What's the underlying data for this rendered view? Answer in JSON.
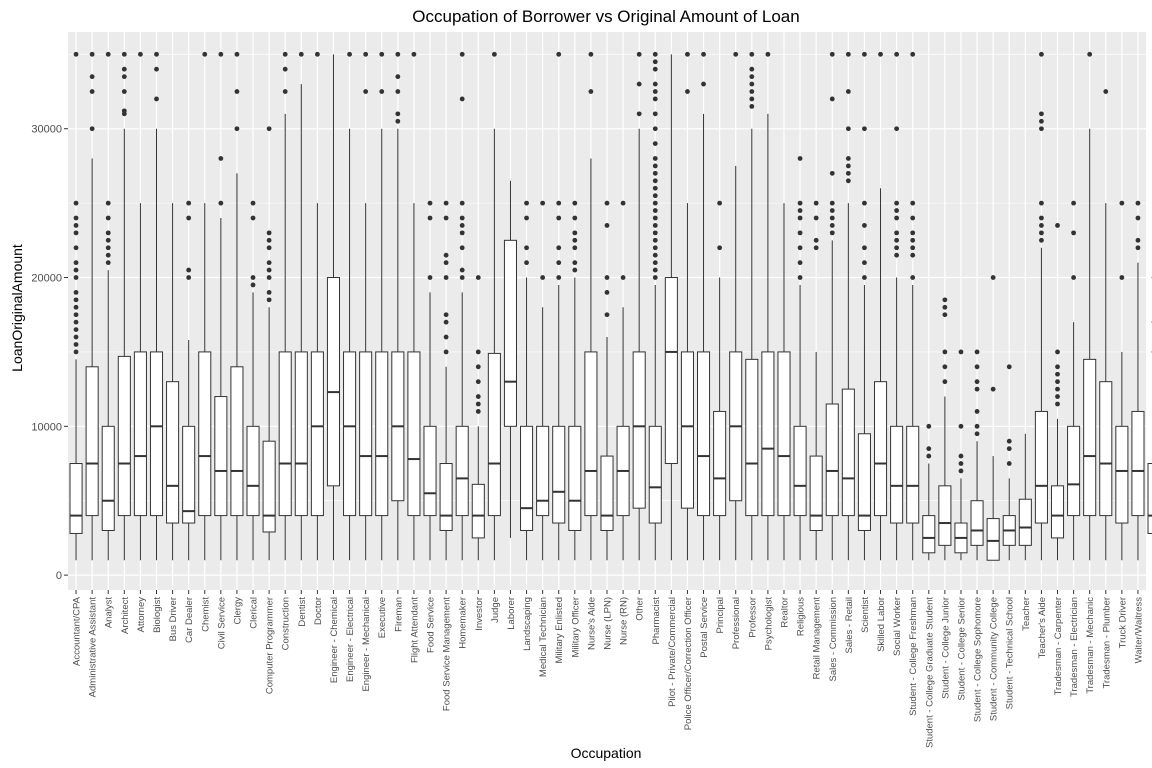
{
  "chart_data": {
    "type": "box",
    "title": "Occupation of Borrower vs Original Amount of Loan",
    "xlabel": "Occupation",
    "ylabel": "LoanOriginalAmount",
    "ylim": [
      -1000,
      36500
    ],
    "yticks": [
      0,
      10000,
      20000,
      30000
    ],
    "grid": true,
    "panel_color": "#ebebeb",
    "grid_color": "#ffffff",
    "box_stroke": "#333333",
    "box_fill": "#ffffff",
    "categories": [
      "Accountant/CPA",
      "Administrative Assistant",
      "Analyst",
      "Architect",
      "Attorney",
      "Biologist",
      "Bus Driver",
      "Car Dealer",
      "Chemist",
      "Civil Service",
      "Clergy",
      "Clerical",
      "Computer Programmer",
      "Construction",
      "Dentist",
      "Doctor",
      "Engineer - Chemical",
      "Engineer - Electrical",
      "Engineer - Mechanical",
      "Executive",
      "Fireman",
      "Flight Attendant",
      "Food Service",
      "Food Service Management",
      "Homemaker",
      "Investor",
      "Judge",
      "Laborer",
      "Landscaping",
      "Medical Technician",
      "Military Enlisted",
      "Military Officer",
      "Nurse's Aide",
      "Nurse (LPN)",
      "Nurse (RN)",
      "Other",
      "Pharmacist",
      "Pilot - Private/Commercial",
      "Police Officer/Correction Officer",
      "Postal Service",
      "Principal",
      "Professional",
      "Professor",
      "Psychologist",
      "Realtor",
      "Religious",
      "Retail Management",
      "Sales - Commission",
      "Sales - Retail",
      "Scientist",
      "Skilled Labor",
      "Social Worker",
      "Student - College Freshman",
      "Student - College Graduate Student",
      "Student - College Junior",
      "Student - College Senior",
      "Student - College Sophomore",
      "Student - Community College",
      "Student - Technical School",
      "Teacher",
      "Teacher's Aide",
      "Tradesman - Carpenter",
      "Tradesman - Electrician",
      "Tradesman - Mechanic",
      "Tradesman - Plumber",
      "Truck Driver",
      "Waiter/Waitress"
    ],
    "boxes": [
      {
        "min": 1000,
        "q1": 2800,
        "median": 4000,
        "q3": 7500,
        "max": 14500,
        "outliers": [
          15000,
          15500,
          16000,
          16500,
          17000,
          17500,
          18000,
          18500,
          19000,
          20000,
          20500,
          21000,
          22000,
          23000,
          23500,
          24000,
          25000,
          35000
        ]
      },
      {
        "min": 1000,
        "q1": 4000,
        "median": 7500,
        "q3": 14000,
        "max": 28000,
        "outliers": [
          30000,
          32500,
          33500,
          35000
        ]
      },
      {
        "min": 1000,
        "q1": 3000,
        "median": 5000,
        "q3": 10000,
        "max": 20500,
        "outliers": [
          21000,
          21500,
          22000,
          22500,
          23000,
          24000,
          25000,
          35000
        ]
      },
      {
        "min": 1000,
        "q1": 4000,
        "median": 7500,
        "q3": 14700,
        "max": 30000,
        "outliers": [
          31000,
          31200,
          32500,
          33500,
          34000,
          35000
        ]
      },
      {
        "min": 1000,
        "q1": 4000,
        "median": 8000,
        "q3": 15000,
        "max": 25000,
        "outliers": [
          35000
        ]
      },
      {
        "min": 1000,
        "q1": 4000,
        "median": 10000,
        "q3": 15000,
        "max": 30000,
        "outliers": [
          32000,
          34000,
          35000
        ]
      },
      {
        "min": 1000,
        "q1": 3500,
        "median": 6000,
        "q3": 13000,
        "max": 25000,
        "outliers": []
      },
      {
        "min": 1000,
        "q1": 3500,
        "median": 4300,
        "q3": 10000,
        "max": 15800,
        "outliers": [
          20000,
          20500,
          24000,
          25000
        ]
      },
      {
        "min": 1000,
        "q1": 4000,
        "median": 8000,
        "q3": 15000,
        "max": 25000,
        "outliers": [
          35000
        ]
      },
      {
        "min": 1000,
        "q1": 4000,
        "median": 7000,
        "q3": 12000,
        "max": 24000,
        "outliers": [
          25000,
          28000,
          35000
        ]
      },
      {
        "min": 1000,
        "q1": 4000,
        "median": 7000,
        "q3": 14000,
        "max": 27000,
        "outliers": [
          30000,
          32500,
          35000
        ]
      },
      {
        "min": 1000,
        "q1": 4000,
        "median": 6000,
        "q3": 10000,
        "max": 19000,
        "outliers": [
          19500,
          20000,
          24000,
          25000
        ]
      },
      {
        "min": 1000,
        "q1": 2900,
        "median": 4000,
        "q3": 9000,
        "max": 18000,
        "outliers": [
          18500,
          19000,
          20000,
          20500,
          21000,
          22000,
          22500,
          23000,
          30000
        ]
      },
      {
        "min": 1000,
        "q1": 4000,
        "median": 7500,
        "q3": 15000,
        "max": 31000,
        "outliers": [
          32500,
          34000,
          35000
        ]
      },
      {
        "min": 1000,
        "q1": 4000,
        "median": 7500,
        "q3": 15000,
        "max": 33000,
        "outliers": [
          35000
        ]
      },
      {
        "min": 1000,
        "q1": 4000,
        "median": 10000,
        "q3": 15000,
        "max": 25000,
        "outliers": [
          35000
        ]
      },
      {
        "min": 1000,
        "q1": 6000,
        "median": 12300,
        "q3": 20000,
        "max": 35000,
        "outliers": []
      },
      {
        "min": 1000,
        "q1": 4000,
        "median": 10000,
        "q3": 15000,
        "max": 30000,
        "outliers": [
          35000
        ]
      },
      {
        "min": 1000,
        "q1": 4000,
        "median": 8000,
        "q3": 15000,
        "max": 25000,
        "outliers": [
          32500,
          35000
        ]
      },
      {
        "min": 1000,
        "q1": 4000,
        "median": 8000,
        "q3": 15000,
        "max": 30000,
        "outliers": [
          32500,
          35000
        ]
      },
      {
        "min": 1000,
        "q1": 5000,
        "median": 10000,
        "q3": 15000,
        "max": 30000,
        "outliers": [
          30500,
          31000,
          32500,
          33500,
          35000
        ]
      },
      {
        "min": 1000,
        "q1": 4000,
        "median": 7800,
        "q3": 15000,
        "max": 25000,
        "outliers": [
          35000
        ]
      },
      {
        "min": 1000,
        "q1": 4000,
        "median": 5500,
        "q3": 10000,
        "max": 19000,
        "outliers": [
          20000,
          24000,
          25000
        ]
      },
      {
        "min": 1000,
        "q1": 3000,
        "median": 4000,
        "q3": 7500,
        "max": 14000,
        "outliers": [
          15000,
          16000,
          17000,
          17500,
          20000,
          21000,
          21500,
          24000,
          25000
        ]
      },
      {
        "min": 1000,
        "q1": 4000,
        "median": 6500,
        "q3": 10000,
        "max": 19000,
        "outliers": [
          20000,
          20500,
          22000,
          23000,
          23500,
          24000,
          25000,
          32000,
          35000
        ]
      },
      {
        "min": 1000,
        "q1": 2500,
        "median": 4000,
        "q3": 6100,
        "max": 10000,
        "outliers": [
          11000,
          11500,
          12000,
          13000,
          14000,
          15000,
          20000
        ]
      },
      {
        "min": 1000,
        "q1": 4000,
        "median": 7500,
        "q3": 14900,
        "max": 30000,
        "outliers": [
          35000
        ]
      },
      {
        "min": 2500,
        "q1": 10000,
        "median": 13000,
        "q3": 22500,
        "max": 26500,
        "outliers": []
      },
      {
        "min": 1000,
        "q1": 3000,
        "median": 4500,
        "q3": 10000,
        "max": 20000,
        "outliers": [
          21000,
          22000,
          24000,
          25000
        ]
      },
      {
        "min": 1000,
        "q1": 4000,
        "median": 5000,
        "q3": 10000,
        "max": 18000,
        "outliers": [
          20000,
          25000
        ]
      },
      {
        "min": 1000,
        "q1": 3500,
        "median": 5600,
        "q3": 10000,
        "max": 19500,
        "outliers": [
          20000,
          21000,
          22000,
          24000,
          25000,
          35000
        ]
      },
      {
        "min": 1000,
        "q1": 3000,
        "median": 5000,
        "q3": 10000,
        "max": 20000,
        "outliers": [
          20500,
          21000,
          22000,
          22500,
          23000,
          24000,
          25000
        ]
      },
      {
        "min": 1000,
        "q1": 4000,
        "median": 7000,
        "q3": 15000,
        "max": 28000,
        "outliers": [
          32500,
          35000
        ]
      },
      {
        "min": 1000,
        "q1": 3000,
        "median": 4000,
        "q3": 8000,
        "max": 16000,
        "outliers": [
          17500,
          19000,
          20000,
          23500,
          25000
        ]
      },
      {
        "min": 1000,
        "q1": 4000,
        "median": 7000,
        "q3": 10000,
        "max": 18000,
        "outliers": [
          20000,
          25000
        ]
      },
      {
        "min": 1000,
        "q1": 4500,
        "median": 10000,
        "q3": 15000,
        "max": 30000,
        "outliers": [
          31000,
          33000,
          35000
        ]
      },
      {
        "min": 1000,
        "q1": 3500,
        "median": 5900,
        "q3": 10000,
        "max": 19500,
        "outliers": [
          20000,
          20500,
          21000,
          21500,
          22000,
          22500,
          23000,
          23500,
          24000,
          24500,
          25000,
          25500,
          26000,
          26500,
          27000,
          27500,
          28000,
          29000,
          30000,
          31000,
          32000,
          32500,
          33000,
          34000,
          34500,
          35000
        ]
      },
      {
        "min": 1000,
        "q1": 7500,
        "median": 15000,
        "q3": 20000,
        "max": 35000,
        "outliers": []
      },
      {
        "min": 1000,
        "q1": 4500,
        "median": 10000,
        "q3": 15000,
        "max": 25000,
        "outliers": [
          32500,
          35000
        ]
      },
      {
        "min": 1000,
        "q1": 4000,
        "median": 8000,
        "q3": 15000,
        "max": 31000,
        "outliers": [
          33000,
          35000
        ]
      },
      {
        "min": 1000,
        "q1": 4000,
        "median": 6500,
        "q3": 11000,
        "max": 20000,
        "outliers": [
          22000,
          25000
        ]
      },
      {
        "min": 1000,
        "q1": 5000,
        "median": 10000,
        "q3": 15000,
        "max": 27500,
        "outliers": [
          35000
        ]
      },
      {
        "min": 1000,
        "q1": 4000,
        "median": 7500,
        "q3": 14500,
        "max": 30000,
        "outliers": [
          31500,
          32000,
          32500,
          33000,
          33500,
          34000,
          35000
        ]
      },
      {
        "min": 1000,
        "q1": 4000,
        "median": 8500,
        "q3": 15000,
        "max": 31000,
        "outliers": [
          35000
        ]
      },
      {
        "min": 1000,
        "q1": 4000,
        "median": 8000,
        "q3": 15000,
        "max": 25000,
        "outliers": []
      },
      {
        "min": 1000,
        "q1": 4000,
        "median": 6000,
        "q3": 10000,
        "max": 19500,
        "outliers": [
          20000,
          21000,
          22000,
          23000,
          24000,
          24500,
          25000,
          28000
        ]
      },
      {
        "min": 1000,
        "q1": 3000,
        "median": 4000,
        "q3": 8000,
        "max": 15000,
        "outliers": [
          22000,
          22500,
          24000,
          25000
        ]
      },
      {
        "min": 1000,
        "q1": 4000,
        "median": 7000,
        "q3": 11500,
        "max": 22500,
        "outliers": [
          23000,
          23500,
          24000,
          24500,
          25000,
          27000,
          32000,
          35000
        ]
      },
      {
        "min": 1000,
        "q1": 4000,
        "median": 6500,
        "q3": 12500,
        "max": 25000,
        "outliers": [
          26500,
          27000,
          27500,
          28000,
          30000,
          32500,
          35000
        ]
      },
      {
        "min": 1000,
        "q1": 3000,
        "median": 4000,
        "q3": 9500,
        "max": 19500,
        "outliers": [
          20000,
          21000,
          22000,
          23500,
          25000,
          30000,
          35000
        ]
      },
      {
        "min": 1000,
        "q1": 4000,
        "median": 7500,
        "q3": 13000,
        "max": 26000,
        "outliers": [
          35000
        ]
      },
      {
        "min": 1000,
        "q1": 3500,
        "median": 6000,
        "q3": 10000,
        "max": 20000,
        "outliers": [
          21500,
          22000,
          22500,
          23000,
          24000,
          24500,
          25000,
          30000,
          35000
        ]
      },
      {
        "min": 1000,
        "q1": 3500,
        "median": 6000,
        "q3": 10000,
        "max": 19500,
        "outliers": [
          20000,
          21500,
          22000,
          22500,
          23000,
          24000,
          25000,
          35000
        ]
      },
      {
        "min": 1000,
        "q1": 1500,
        "median": 2500,
        "q3": 4000,
        "max": 7500,
        "outliers": [
          8000,
          8500,
          10000
        ]
      },
      {
        "min": 1000,
        "q1": 2000,
        "median": 3500,
        "q3": 6000,
        "max": 12000,
        "outliers": [
          13000,
          14000,
          15000,
          17500,
          18000,
          18500
        ]
      },
      {
        "min": 1000,
        "q1": 1500,
        "median": 2500,
        "q3": 3500,
        "max": 6500,
        "outliers": [
          7000,
          7500,
          8000,
          10000,
          15000
        ]
      },
      {
        "min": 1000,
        "q1": 2000,
        "median": 3000,
        "q3": 5000,
        "max": 9000,
        "outliers": [
          9500,
          10000,
          11000,
          12500,
          13000,
          14000,
          15000
        ]
      },
      {
        "min": 1000,
        "q1": 1000,
        "median": 2300,
        "q3": 3800,
        "max": 8000,
        "outliers": [
          12500,
          20000
        ]
      },
      {
        "min": 1000,
        "q1": 2000,
        "median": 3000,
        "q3": 4000,
        "max": 6500,
        "outliers": [
          7500,
          8500,
          9000,
          14000
        ]
      },
      {
        "min": 1000,
        "q1": 2000,
        "median": 3200,
        "q3": 5100,
        "max": 9500,
        "outliers": []
      },
      {
        "min": 1000,
        "q1": 3500,
        "median": 6000,
        "q3": 11000,
        "max": 22000,
        "outliers": [
          22500,
          23000,
          23500,
          24000,
          25000,
          30000,
          30500,
          31000,
          35000
        ]
      },
      {
        "min": 1000,
        "q1": 2500,
        "median": 4000,
        "q3": 6000,
        "max": 10500,
        "outliers": [
          11500,
          12000,
          12500,
          13000,
          13500,
          14000,
          15000,
          23500
        ]
      },
      {
        "min": 1000,
        "q1": 4000,
        "median": 6100,
        "q3": 10000,
        "max": 17000,
        "outliers": [
          20000,
          23000,
          25000
        ]
      },
      {
        "min": 1000,
        "q1": 4000,
        "median": 8000,
        "q3": 14500,
        "max": 30000,
        "outliers": [
          35000
        ]
      },
      {
        "min": 1000,
        "q1": 4000,
        "median": 7500,
        "q3": 13000,
        "max": 25000,
        "outliers": [
          32500
        ]
      },
      {
        "min": 1000,
        "q1": 3500,
        "median": 7000,
        "q3": 10000,
        "max": 15000,
        "outliers": [
          20000,
          25000
        ]
      },
      {
        "min": 1000,
        "q1": 4000,
        "median": 7000,
        "q3": 11000,
        "max": 21000,
        "outliers": [
          22000,
          22500,
          24000,
          25000
        ]
      },
      {
        "min": 1000,
        "q1": 2800,
        "median": 4000,
        "q3": 7500,
        "max": 13500,
        "outliers": [
          15000,
          17000,
          20000
        ]
      }
    ]
  }
}
